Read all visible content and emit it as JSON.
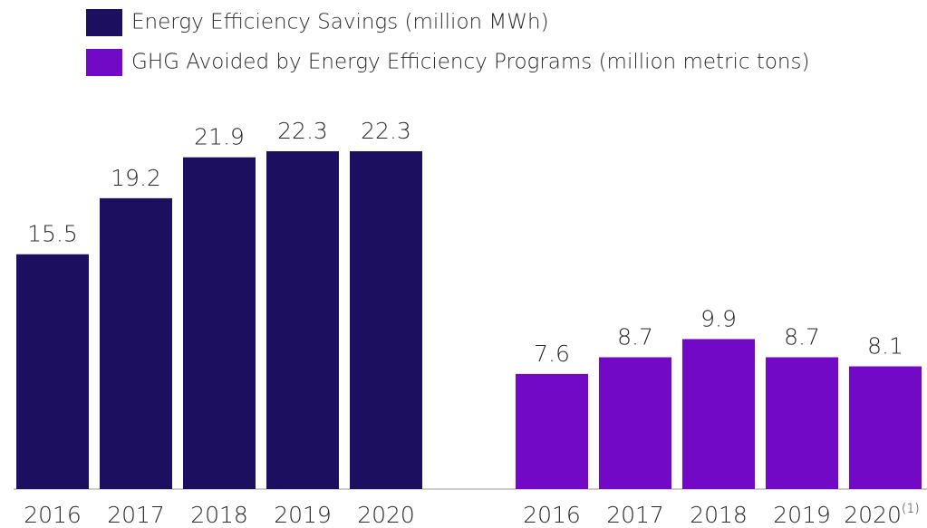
{
  "chart_data": {
    "type": "bar",
    "series": [
      {
        "name": "Energy Efficiency Savings (million MWh)",
        "color": "#1c0f5f",
        "categories": [
          "2016",
          "2017",
          "2018",
          "2019",
          "2020"
        ],
        "values": [
          15.5,
          19.2,
          21.9,
          22.3,
          22.3
        ]
      },
      {
        "name": "GHG Avoided by Energy Efficiency Programs (million metric tons)",
        "color": "#7209c6",
        "categories": [
          "2016",
          "2017",
          "2018",
          "2019",
          "2020"
        ],
        "values": [
          7.6,
          8.7,
          9.9,
          8.7,
          8.1
        ],
        "footnote_mark": "(1)"
      }
    ]
  }
}
